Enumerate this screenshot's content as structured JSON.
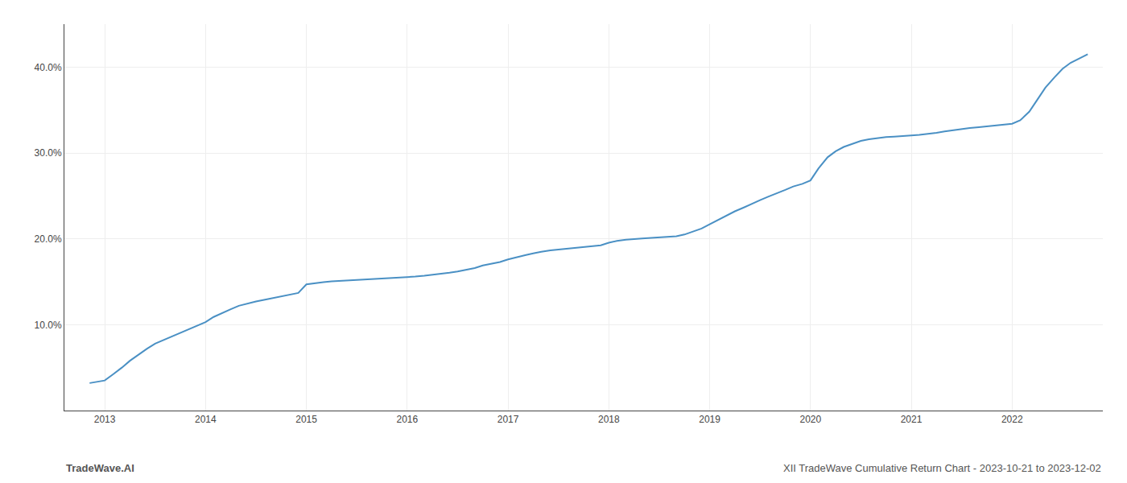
{
  "chart_data": {
    "type": "line",
    "x": [
      2012.85,
      2012.9,
      2012.95,
      2013.0,
      2013.08,
      2013.17,
      2013.25,
      2013.33,
      2013.42,
      2013.5,
      2013.58,
      2013.67,
      2013.75,
      2013.83,
      2013.92,
      2014.0,
      2014.08,
      2014.17,
      2014.25,
      2014.33,
      2014.42,
      2014.5,
      2014.58,
      2014.67,
      2014.75,
      2014.83,
      2014.92,
      2015.0,
      2015.08,
      2015.17,
      2015.25,
      2015.33,
      2015.42,
      2015.5,
      2015.58,
      2015.67,
      2015.75,
      2015.83,
      2015.92,
      2016.0,
      2016.08,
      2016.17,
      2016.25,
      2016.33,
      2016.42,
      2016.5,
      2016.58,
      2016.67,
      2016.75,
      2016.83,
      2016.92,
      2017.0,
      2017.08,
      2017.17,
      2017.25,
      2017.33,
      2017.42,
      2017.5,
      2017.58,
      2017.67,
      2017.75,
      2017.83,
      2017.92,
      2018.0,
      2018.08,
      2018.17,
      2018.25,
      2018.33,
      2018.42,
      2018.5,
      2018.58,
      2018.67,
      2018.75,
      2018.83,
      2018.92,
      2019.0,
      2019.08,
      2019.17,
      2019.25,
      2019.33,
      2019.42,
      2019.5,
      2019.58,
      2019.67,
      2019.75,
      2019.83,
      2019.92,
      2020.0,
      2020.08,
      2020.17,
      2020.25,
      2020.33,
      2020.42,
      2020.5,
      2020.58,
      2020.67,
      2020.75,
      2020.83,
      2020.92,
      2021.0,
      2021.08,
      2021.17,
      2021.25,
      2021.33,
      2021.42,
      2021.5,
      2021.58,
      2021.67,
      2021.75,
      2021.83,
      2021.92,
      2022.0,
      2022.08,
      2022.17,
      2022.25,
      2022.33,
      2022.42,
      2022.5,
      2022.58,
      2022.67,
      2022.75
    ],
    "values": [
      3.2,
      3.3,
      3.4,
      3.5,
      4.2,
      5.0,
      5.8,
      6.5,
      7.2,
      7.8,
      8.2,
      8.7,
      9.1,
      9.5,
      9.9,
      10.3,
      10.9,
      11.4,
      11.8,
      12.2,
      12.5,
      12.7,
      12.9,
      13.1,
      13.3,
      13.5,
      13.7,
      14.7,
      14.85,
      14.95,
      15.05,
      15.1,
      15.15,
      15.2,
      15.25,
      15.3,
      15.35,
      15.4,
      15.45,
      15.5,
      15.6,
      15.7,
      15.8,
      15.9,
      16.05,
      16.2,
      16.4,
      16.6,
      16.9,
      17.1,
      17.3,
      17.6,
      17.85,
      18.1,
      18.3,
      18.5,
      18.65,
      18.75,
      18.85,
      18.92,
      19.0,
      19.1,
      19.25,
      19.55,
      19.75,
      19.9,
      20.0,
      20.05,
      20.1,
      20.15,
      20.2,
      20.3,
      20.5,
      20.8,
      21.2,
      21.7,
      22.2,
      22.7,
      23.2,
      23.6,
      24.1,
      24.5,
      24.9,
      25.3,
      25.7,
      26.1,
      26.4,
      26.8,
      28.2,
      29.5,
      30.2,
      30.7,
      31.1,
      31.4,
      31.6,
      31.75,
      31.85,
      31.9,
      32.0,
      32.05,
      32.1,
      32.2,
      32.35,
      32.5,
      32.65,
      32.8,
      32.9,
      33.0,
      33.1,
      33.15,
      33.25,
      33.4,
      33.8,
      34.8,
      36.2,
      37.6,
      38.8,
      39.8,
      40.5,
      41.0,
      41.5
    ],
    "color": "#4a90c4",
    "xlim": [
      2012.6,
      2022.9
    ],
    "xticks": [
      2013,
      2014,
      2015,
      2016,
      2017,
      2018,
      2019,
      2020,
      2021,
      2022
    ],
    "ylim": [
      0,
      45
    ],
    "yticks": [
      {
        "value": 10.0,
        "label": "10.0%"
      },
      {
        "value": 20.0,
        "label": "20.0%"
      },
      {
        "value": 30.0,
        "label": "30.0%"
      },
      {
        "value": 40.0,
        "label": "40.0%"
      }
    ],
    "grid": true,
    "annotations": [
      "TradeWave.AI",
      "XII TradeWave Cumulative Return Chart - 2023-10-21 to 2023-12-02"
    ]
  }
}
